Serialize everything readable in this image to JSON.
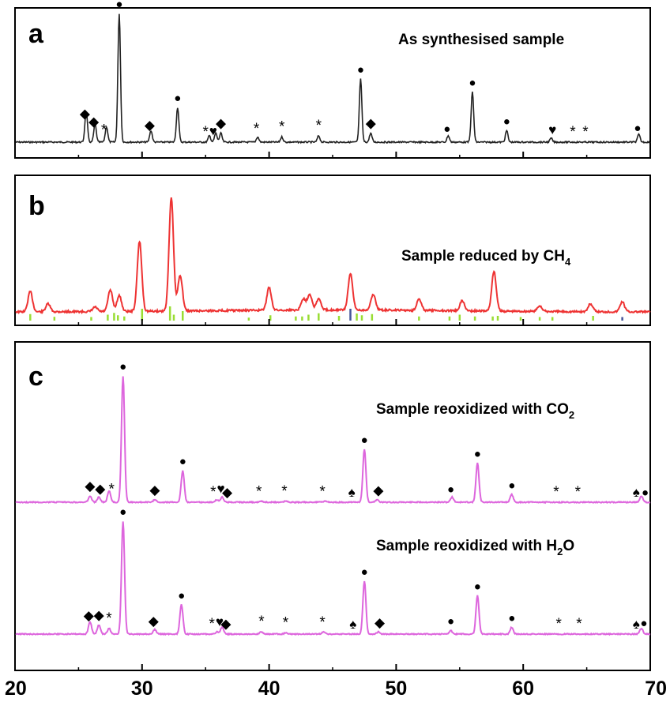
{
  "chart_data": [
    {
      "type": "line",
      "panel": "a",
      "caption_main": "As synthesised sample",
      "color": "#222222",
      "xlim": [
        20,
        70
      ],
      "x_ticks": [
        20,
        30,
        40,
        50,
        60,
        70
      ],
      "peaks": [
        {
          "x": 25.6,
          "y": 0.24
        },
        {
          "x": 26.3,
          "y": 0.14
        },
        {
          "x": 27.2,
          "y": 0.12
        },
        {
          "x": 28.2,
          "y": 1.0
        },
        {
          "x": 30.7,
          "y": 0.09
        },
        {
          "x": 32.8,
          "y": 0.27
        },
        {
          "x": 35.3,
          "y": 0.05
        },
        {
          "x": 35.8,
          "y": 0.07
        },
        {
          "x": 36.2,
          "y": 0.07
        },
        {
          "x": 39.1,
          "y": 0.04
        },
        {
          "x": 41.0,
          "y": 0.04
        },
        {
          "x": 43.9,
          "y": 0.05
        },
        {
          "x": 47.2,
          "y": 0.49
        },
        {
          "x": 48.0,
          "y": 0.07
        },
        {
          "x": 54.1,
          "y": 0.05
        },
        {
          "x": 56.0,
          "y": 0.39
        },
        {
          "x": 58.7,
          "y": 0.09
        },
        {
          "x": 62.2,
          "y": 0.03
        },
        {
          "x": 69.1,
          "y": 0.06
        }
      ],
      "markers": [
        {
          "x": 25.5,
          "symbol": "◆"
        },
        {
          "x": 26.2,
          "symbol": "◆"
        },
        {
          "x": 27.0,
          "symbol": "*"
        },
        {
          "x": 28.2,
          "symbol": "●"
        },
        {
          "x": 30.6,
          "symbol": "◆"
        },
        {
          "x": 32.8,
          "symbol": "●"
        },
        {
          "x": 35.0,
          "symbol": "*"
        },
        {
          "x": 35.6,
          "symbol": "♥"
        },
        {
          "x": 36.2,
          "symbol": "◆"
        },
        {
          "x": 39.0,
          "symbol": "*"
        },
        {
          "x": 41.0,
          "symbol": "*"
        },
        {
          "x": 43.9,
          "symbol": "*"
        },
        {
          "x": 47.2,
          "symbol": "●"
        },
        {
          "x": 48.0,
          "symbol": "◆"
        },
        {
          "x": 54.0,
          "symbol": "●"
        },
        {
          "x": 56.0,
          "symbol": "●"
        },
        {
          "x": 58.7,
          "symbol": "●"
        },
        {
          "x": 62.3,
          "symbol": "♥"
        },
        {
          "x": 63.9,
          "symbol": "*"
        },
        {
          "x": 64.9,
          "symbol": "*"
        },
        {
          "x": 69.0,
          "symbol": "●"
        }
      ]
    },
    {
      "type": "line",
      "panel": "b",
      "caption_main": "Sample reduced by CH",
      "caption_sub": "4",
      "color": "#ee3333",
      "xlim": [
        20,
        70
      ],
      "x_ticks": [
        20,
        30,
        40,
        50,
        60,
        70
      ],
      "peaks": [
        {
          "x": 21.2,
          "y": 0.18
        },
        {
          "x": 22.6,
          "y": 0.07
        },
        {
          "x": 26.3,
          "y": 0.04
        },
        {
          "x": 27.5,
          "y": 0.19
        },
        {
          "x": 28.2,
          "y": 0.14
        },
        {
          "x": 29.8,
          "y": 0.62
        },
        {
          "x": 32.3,
          "y": 1.0
        },
        {
          "x": 33.0,
          "y": 0.32
        },
        {
          "x": 40.0,
          "y": 0.2
        },
        {
          "x": 42.7,
          "y": 0.1
        },
        {
          "x": 43.2,
          "y": 0.14
        },
        {
          "x": 43.9,
          "y": 0.1
        },
        {
          "x": 46.4,
          "y": 0.32
        },
        {
          "x": 48.2,
          "y": 0.14
        },
        {
          "x": 51.8,
          "y": 0.1
        },
        {
          "x": 55.2,
          "y": 0.09
        },
        {
          "x": 57.7,
          "y": 0.35
        },
        {
          "x": 61.3,
          "y": 0.05
        },
        {
          "x": 65.3,
          "y": 0.07
        },
        {
          "x": 67.8,
          "y": 0.09
        }
      ],
      "reference_lines": [
        {
          "x": 21.2,
          "h": 0.55,
          "color": "#99dd33"
        },
        {
          "x": 23.1,
          "h": 0.32,
          "color": "#99dd33"
        },
        {
          "x": 26.0,
          "h": 0.3,
          "color": "#99dd33"
        },
        {
          "x": 27.3,
          "h": 0.5,
          "color": "#99dd33"
        },
        {
          "x": 27.8,
          "h": 0.65,
          "color": "#99dd33"
        },
        {
          "x": 28.1,
          "h": 0.45,
          "color": "#99dd33"
        },
        {
          "x": 28.6,
          "h": 0.35,
          "color": "#99dd33"
        },
        {
          "x": 30.0,
          "h": 1.0,
          "color": "#99dd33"
        },
        {
          "x": 32.2,
          "h": 1.2,
          "color": "#99dd33"
        },
        {
          "x": 32.5,
          "h": 0.5,
          "color": "#99dd33"
        },
        {
          "x": 33.2,
          "h": 0.8,
          "color": "#99dd33"
        },
        {
          "x": 38.4,
          "h": 0.25,
          "color": "#99dd33"
        },
        {
          "x": 40.1,
          "h": 0.45,
          "color": "#99dd33"
        },
        {
          "x": 42.1,
          "h": 0.35,
          "color": "#99dd33"
        },
        {
          "x": 42.6,
          "h": 0.35,
          "color": "#99dd33"
        },
        {
          "x": 43.1,
          "h": 0.5,
          "color": "#99dd33"
        },
        {
          "x": 43.9,
          "h": 0.62,
          "color": "#99dd33"
        },
        {
          "x": 45.5,
          "h": 0.4,
          "color": "#99dd33"
        },
        {
          "x": 46.4,
          "h": 1.0,
          "color": "#445599"
        },
        {
          "x": 46.9,
          "h": 0.6,
          "color": "#99dd33"
        },
        {
          "x": 47.3,
          "h": 0.45,
          "color": "#99dd33"
        },
        {
          "x": 48.1,
          "h": 0.55,
          "color": "#99dd33"
        },
        {
          "x": 51.8,
          "h": 0.35,
          "color": "#99dd33"
        },
        {
          "x": 54.2,
          "h": 0.35,
          "color": "#99dd33"
        },
        {
          "x": 55.0,
          "h": 0.5,
          "color": "#99dd33"
        },
        {
          "x": 56.2,
          "h": 0.35,
          "color": "#99dd33"
        },
        {
          "x": 57.6,
          "h": 0.35,
          "color": "#99dd33"
        },
        {
          "x": 58.0,
          "h": 0.4,
          "color": "#99dd33"
        },
        {
          "x": 59.8,
          "h": 0.3,
          "color": "#99dd33"
        },
        {
          "x": 61.3,
          "h": 0.3,
          "color": "#99dd33"
        },
        {
          "x": 62.3,
          "h": 0.3,
          "color": "#99dd33"
        },
        {
          "x": 65.5,
          "h": 0.4,
          "color": "#99dd33"
        },
        {
          "x": 67.8,
          "h": 0.3,
          "color": "#445599"
        }
      ]
    },
    {
      "type": "line",
      "panel": "c",
      "color": "#dd66dd",
      "xlim": [
        20,
        70
      ],
      "x_ticks": [
        20,
        30,
        40,
        50,
        60,
        70
      ],
      "series": [
        {
          "caption_main": "Sample reoxidized with CO",
          "caption_sub": "2",
          "caption_tail": "",
          "peaks": [
            {
              "x": 25.9,
              "y": 0.05
            },
            {
              "x": 26.6,
              "y": 0.04
            },
            {
              "x": 27.4,
              "y": 0.09
            },
            {
              "x": 28.5,
              "y": 1.0
            },
            {
              "x": 31.0,
              "y": 0.02
            },
            {
              "x": 33.2,
              "y": 0.25
            },
            {
              "x": 35.9,
              "y": 0.02
            },
            {
              "x": 36.3,
              "y": 0.04
            },
            {
              "x": 39.4,
              "y": 0.01
            },
            {
              "x": 41.3,
              "y": 0.01
            },
            {
              "x": 44.4,
              "y": 0.01
            },
            {
              "x": 47.5,
              "y": 0.42
            },
            {
              "x": 48.5,
              "y": 0.02
            },
            {
              "x": 54.4,
              "y": 0.04
            },
            {
              "x": 56.4,
              "y": 0.31
            },
            {
              "x": 59.1,
              "y": 0.06
            },
            {
              "x": 69.3,
              "y": 0.05
            }
          ],
          "markers": [
            {
              "x": 25.9,
              "symbol": "◆"
            },
            {
              "x": 26.7,
              "symbol": "◆"
            },
            {
              "x": 27.6,
              "symbol": "*"
            },
            {
              "x": 28.5,
              "symbol": "●"
            },
            {
              "x": 31.0,
              "symbol": "◆"
            },
            {
              "x": 33.2,
              "symbol": "●"
            },
            {
              "x": 35.6,
              "symbol": "*"
            },
            {
              "x": 36.2,
              "symbol": "♥"
            },
            {
              "x": 36.7,
              "symbol": "◆"
            },
            {
              "x": 39.2,
              "symbol": "*"
            },
            {
              "x": 41.2,
              "symbol": "*"
            },
            {
              "x": 44.2,
              "symbol": "*"
            },
            {
              "x": 46.5,
              "symbol": "♠"
            },
            {
              "x": 47.5,
              "symbol": "●"
            },
            {
              "x": 48.6,
              "symbol": "◆"
            },
            {
              "x": 54.3,
              "symbol": "●"
            },
            {
              "x": 56.4,
              "symbol": "●"
            },
            {
              "x": 59.1,
              "symbol": "●"
            },
            {
              "x": 62.6,
              "symbol": "*"
            },
            {
              "x": 64.3,
              "symbol": "*"
            },
            {
              "x": 68.9,
              "symbol": "♠"
            },
            {
              "x": 69.6,
              "symbol": "●"
            }
          ]
        },
        {
          "caption_main": "Sample reoxidized with H",
          "caption_sub": "2",
          "caption_tail": "O",
          "peaks": [
            {
              "x": 25.9,
              "y": 0.11
            },
            {
              "x": 26.6,
              "y": 0.08
            },
            {
              "x": 27.4,
              "y": 0.05
            },
            {
              "x": 28.5,
              "y": 1.0
            },
            {
              "x": 31.0,
              "y": 0.04
            },
            {
              "x": 33.1,
              "y": 0.26
            },
            {
              "x": 35.9,
              "y": 0.02
            },
            {
              "x": 36.3,
              "y": 0.06
            },
            {
              "x": 39.4,
              "y": 0.02
            },
            {
              "x": 41.3,
              "y": 0.01
            },
            {
              "x": 44.3,
              "y": 0.02
            },
            {
              "x": 47.5,
              "y": 0.47
            },
            {
              "x": 48.6,
              "y": 0.02
            },
            {
              "x": 54.3,
              "y": 0.03
            },
            {
              "x": 56.4,
              "y": 0.34
            },
            {
              "x": 59.1,
              "y": 0.06
            },
            {
              "x": 69.3,
              "y": 0.05
            }
          ],
          "markers": [
            {
              "x": 25.8,
              "symbol": "◆"
            },
            {
              "x": 26.6,
              "symbol": "◆"
            },
            {
              "x": 27.4,
              "symbol": "*"
            },
            {
              "x": 28.5,
              "symbol": "●"
            },
            {
              "x": 30.9,
              "symbol": "◆"
            },
            {
              "x": 33.1,
              "symbol": "●"
            },
            {
              "x": 35.5,
              "symbol": "*"
            },
            {
              "x": 36.1,
              "symbol": "♥"
            },
            {
              "x": 36.6,
              "symbol": "◆"
            },
            {
              "x": 39.4,
              "symbol": "*"
            },
            {
              "x": 41.3,
              "symbol": "*"
            },
            {
              "x": 44.2,
              "symbol": "*"
            },
            {
              "x": 46.6,
              "symbol": "♠"
            },
            {
              "x": 47.5,
              "symbol": "●"
            },
            {
              "x": 48.7,
              "symbol": "◆"
            },
            {
              "x": 54.3,
              "symbol": "●"
            },
            {
              "x": 56.4,
              "symbol": "●"
            },
            {
              "x": 59.1,
              "symbol": "●"
            },
            {
              "x": 62.8,
              "symbol": "*"
            },
            {
              "x": 64.4,
              "symbol": "*"
            },
            {
              "x": 68.9,
              "symbol": "♠"
            },
            {
              "x": 69.5,
              "symbol": "●"
            }
          ]
        }
      ]
    }
  ]
}
